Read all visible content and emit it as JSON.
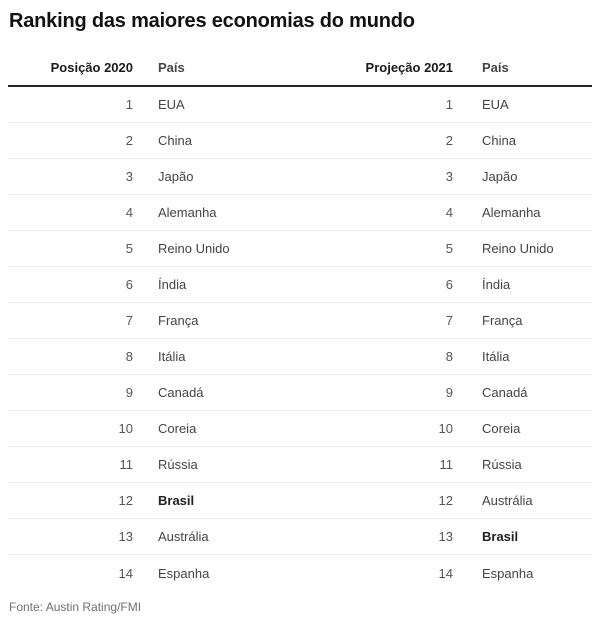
{
  "title": "Ranking das maiores economias do mundo",
  "source": "Fonte: Austin Rating/FMI",
  "colors": {
    "title_text": "#111111",
    "header_rule": "#222222",
    "row_divider": "#ececec",
    "rank_text": "#555555",
    "country_text": "#444444",
    "highlight_text": "#222222",
    "source_text": "#717171",
    "background": "#ffffff"
  },
  "chart_data": {
    "type": "table",
    "title": "Ranking das maiores economias do mundo",
    "columns": [
      "Posição 2020",
      "País",
      "Projeção 2021",
      "País"
    ],
    "rows": [
      {
        "rank_2020": "1",
        "country_2020": "EUA",
        "bold_2020": false,
        "rank_2021": "1",
        "country_2021": "EUA",
        "bold_2021": false
      },
      {
        "rank_2020": "2",
        "country_2020": "China",
        "bold_2020": false,
        "rank_2021": "2",
        "country_2021": "China",
        "bold_2021": false
      },
      {
        "rank_2020": "3",
        "country_2020": "Japão",
        "bold_2020": false,
        "rank_2021": "3",
        "country_2021": "Japão",
        "bold_2021": false
      },
      {
        "rank_2020": "4",
        "country_2020": "Alemanha",
        "bold_2020": false,
        "rank_2021": "4",
        "country_2021": "Alemanha",
        "bold_2021": false
      },
      {
        "rank_2020": "5",
        "country_2020": "Reino Unido",
        "bold_2020": false,
        "rank_2021": "5",
        "country_2021": "Reino Unido",
        "bold_2021": false
      },
      {
        "rank_2020": "6",
        "country_2020": "Índia",
        "bold_2020": false,
        "rank_2021": "6",
        "country_2021": "Índia",
        "bold_2021": false
      },
      {
        "rank_2020": "7",
        "country_2020": "França",
        "bold_2020": false,
        "rank_2021": "7",
        "country_2021": "França",
        "bold_2021": false
      },
      {
        "rank_2020": "8",
        "country_2020": "Itália",
        "bold_2020": false,
        "rank_2021": "8",
        "country_2021": "Itália",
        "bold_2021": false
      },
      {
        "rank_2020": "9",
        "country_2020": "Canadá",
        "bold_2020": false,
        "rank_2021": "9",
        "country_2021": "Canadá",
        "bold_2021": false
      },
      {
        "rank_2020": "10",
        "country_2020": "Coreia",
        "bold_2020": false,
        "rank_2021": "10",
        "country_2021": "Coreia",
        "bold_2021": false
      },
      {
        "rank_2020": "11",
        "country_2020": "Rússia",
        "bold_2020": false,
        "rank_2021": "11",
        "country_2021": "Rússia",
        "bold_2021": false
      },
      {
        "rank_2020": "12",
        "country_2020": "Brasil",
        "bold_2020": true,
        "rank_2021": "12",
        "country_2021": "Austrália",
        "bold_2021": false
      },
      {
        "rank_2020": "13",
        "country_2020": "Austrália",
        "bold_2020": false,
        "rank_2021": "13",
        "country_2021": "Brasil",
        "bold_2021": true
      },
      {
        "rank_2020": "14",
        "country_2020": "Espanha",
        "bold_2020": false,
        "rank_2021": "14",
        "country_2021": "Espanha",
        "bold_2021": false
      }
    ],
    "source": "Fonte: Austin Rating/FMI",
    "legend_position": "none",
    "grid": "horizontal-dividers"
  }
}
